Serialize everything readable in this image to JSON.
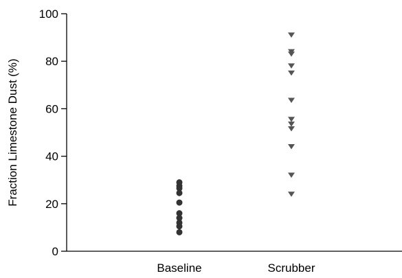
{
  "chart_data": {
    "type": "scatter",
    "title": "",
    "xlabel": "",
    "ylabel": "Fraction Limestone Dust (%)",
    "categories": [
      "Baseline",
      "Scrubber"
    ],
    "ylim": [
      0,
      100
    ],
    "yticks": [
      0,
      20,
      40,
      60,
      80,
      100
    ],
    "grid": false,
    "legend": "none",
    "series": [
      {
        "category": "Baseline",
        "marker": "circle",
        "color": "#333333",
        "values": [
          29,
          27.5,
          26.5,
          24.5,
          20.5,
          16,
          14,
          12,
          10.5,
          8
        ]
      },
      {
        "category": "Scrubber",
        "marker": "triangle-down",
        "color": "#555555",
        "values": [
          91,
          84,
          83,
          78,
          75,
          63.5,
          55.5,
          53.5,
          51.5,
          44,
          32,
          24
        ]
      }
    ]
  }
}
